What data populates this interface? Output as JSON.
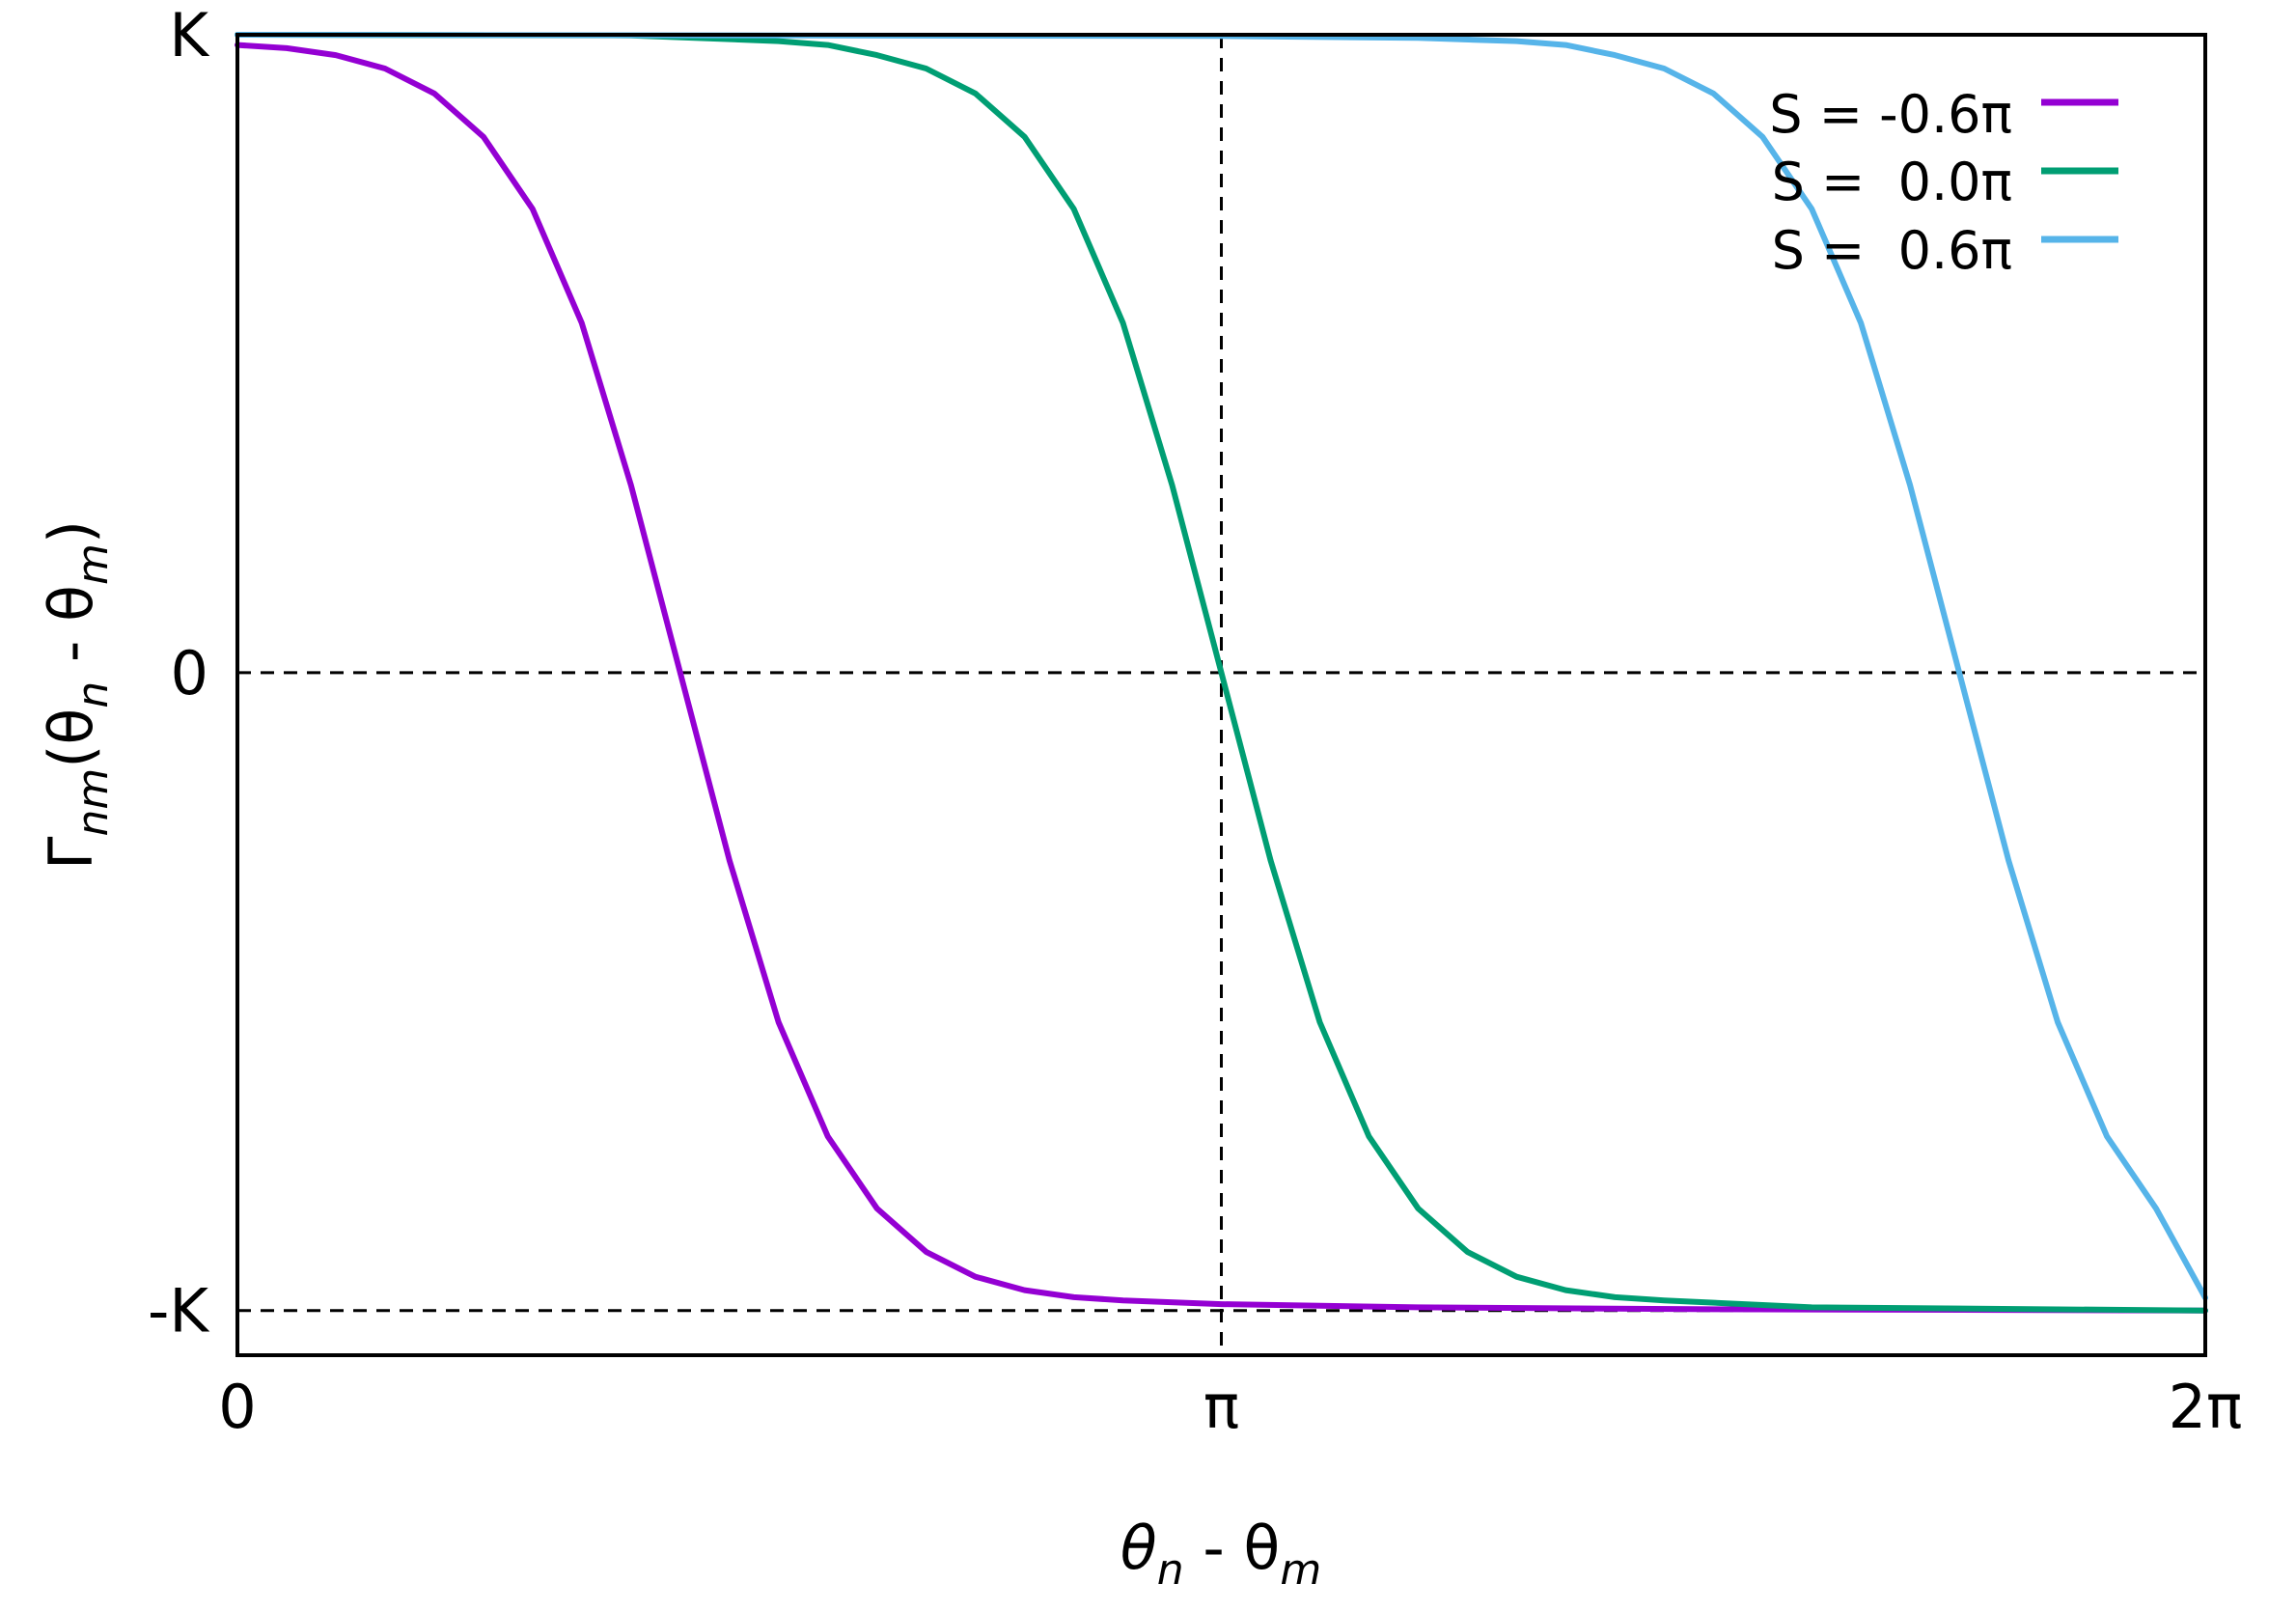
{
  "chart_data": {
    "type": "line",
    "title": "",
    "xlabel": {
      "base": "θ",
      "sub1": "n",
      "mid": " - θ",
      "sub2": "m"
    },
    "ylabel": {
      "g": "Γ",
      "gsub": "nm",
      "a": "(θ",
      "sub1": "n",
      "b": " - θ",
      "sub2": "m",
      "c": ")"
    },
    "x_domain_pi": [
      0,
      2
    ],
    "y_domain_K": [
      -1.07,
      1.0
    ],
    "x_ticks": [
      {
        "value_pi": 0,
        "label": "0"
      },
      {
        "value_pi": 1,
        "label": "π"
      },
      {
        "value_pi": 2,
        "label": "2π"
      }
    ],
    "y_ticks": [
      {
        "value_K": 1,
        "label": "K"
      },
      {
        "value_K": 0,
        "label": "0"
      },
      {
        "value_K": -1,
        "label": "-K"
      }
    ],
    "reference_lines": {
      "horizontal_K": [
        1,
        0,
        -1
      ],
      "vertical_pi": [
        1
      ]
    },
    "grid": false,
    "legend_position": "top-right",
    "series": [
      {
        "name": "S = -0.6π",
        "color": "#9400D3",
        "points": [
          [
            0.0,
            0.984
          ],
          [
            0.05,
            0.979
          ],
          [
            0.1,
            0.968
          ],
          [
            0.15,
            0.947
          ],
          [
            0.2,
            0.908
          ],
          [
            0.25,
            0.84
          ],
          [
            0.3,
            0.727
          ],
          [
            0.35,
            0.548
          ],
          [
            0.4,
            0.294
          ],
          [
            0.45,
            0.0
          ],
          [
            0.5,
            -0.294
          ],
          [
            0.55,
            -0.548
          ],
          [
            0.6,
            -0.727
          ],
          [
            0.65,
            -0.84
          ],
          [
            0.7,
            -0.908
          ],
          [
            0.75,
            -0.947
          ],
          [
            0.8,
            -0.968
          ],
          [
            0.85,
            -0.979
          ],
          [
            0.9,
            -0.984
          ],
          [
            1.0,
            -0.99
          ],
          [
            1.2,
            -0.995
          ],
          [
            1.5,
            -0.998
          ],
          [
            2.0,
            -1.0
          ]
        ]
      },
      {
        "name": "S =  0.0π",
        "color": "#009E73",
        "points": [
          [
            0.0,
            1.0
          ],
          [
            0.4,
            0.999
          ],
          [
            0.55,
            0.99
          ],
          [
            0.6,
            0.984
          ],
          [
            0.65,
            0.968
          ],
          [
            0.7,
            0.947
          ],
          [
            0.75,
            0.908
          ],
          [
            0.8,
            0.84
          ],
          [
            0.85,
            0.727
          ],
          [
            0.9,
            0.548
          ],
          [
            0.95,
            0.294
          ],
          [
            1.0,
            0.0
          ],
          [
            1.05,
            -0.294
          ],
          [
            1.1,
            -0.548
          ],
          [
            1.15,
            -0.727
          ],
          [
            1.2,
            -0.84
          ],
          [
            1.25,
            -0.908
          ],
          [
            1.3,
            -0.947
          ],
          [
            1.35,
            -0.968
          ],
          [
            1.4,
            -0.979
          ],
          [
            1.45,
            -0.984
          ],
          [
            1.6,
            -0.995
          ],
          [
            2.0,
            -1.0
          ]
        ]
      },
      {
        "name": "S =  0.6π",
        "color": "#56B4E9",
        "points": [
          [
            0.0,
            1.0
          ],
          [
            1.0,
            0.998
          ],
          [
            1.2,
            0.995
          ],
          [
            1.3,
            0.99
          ],
          [
            1.35,
            0.984
          ],
          [
            1.4,
            0.968
          ],
          [
            1.45,
            0.947
          ],
          [
            1.5,
            0.908
          ],
          [
            1.55,
            0.84
          ],
          [
            1.6,
            0.727
          ],
          [
            1.65,
            0.548
          ],
          [
            1.7,
            0.294
          ],
          [
            1.75,
            0.0
          ],
          [
            1.8,
            -0.294
          ],
          [
            1.85,
            -0.548
          ],
          [
            1.9,
            -0.727
          ],
          [
            1.95,
            -0.84
          ],
          [
            2.0,
            -0.98
          ]
        ]
      }
    ]
  }
}
